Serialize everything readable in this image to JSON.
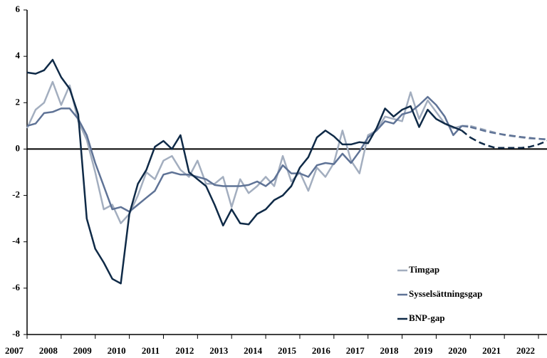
{
  "chart_data": {
    "type": "line",
    "x": [
      2007,
      2007.25,
      2007.5,
      2007.75,
      2008,
      2008.25,
      2008.5,
      2008.75,
      2009,
      2009.25,
      2009.5,
      2009.75,
      2010,
      2010.25,
      2010.5,
      2010.75,
      2011,
      2011.25,
      2011.5,
      2011.75,
      2012,
      2012.25,
      2012.5,
      2012.75,
      2013,
      2013.25,
      2013.5,
      2013.75,
      2014,
      2014.25,
      2014.5,
      2014.75,
      2015,
      2015.25,
      2015.5,
      2015.75,
      2016,
      2016.25,
      2016.5,
      2016.75,
      2017,
      2017.25,
      2017.5,
      2017.75,
      2018,
      2018.25,
      2018.5,
      2018.75,
      2019,
      2019.25,
      2019.5,
      2019.75,
      2020,
      2020.25,
      2020.5,
      2020.75,
      2021,
      2021.25,
      2021.5,
      2021.75,
      2022,
      2022.25
    ],
    "series": [
      {
        "name": "Timgap",
        "color": "#a3aebf",
        "values": [
          0.9,
          1.7,
          2.0,
          2.9,
          1.9,
          2.75,
          1.2,
          0.4,
          -1.0,
          -2.6,
          -2.4,
          -3.2,
          -2.8,
          -2.0,
          -1.0,
          -1.3,
          -0.5,
          -0.3,
          -0.9,
          -1.2,
          -0.5,
          -1.5,
          -1.5,
          -1.2,
          -2.5,
          -1.3,
          -1.9,
          -1.6,
          -1.2,
          -1.6,
          -0.3,
          -1.4,
          -1.0,
          -1.8,
          -0.8,
          -1.2,
          -0.6,
          0.8,
          -0.5,
          -1.05,
          0.6,
          0.8,
          1.4,
          1.3,
          1.2,
          2.45,
          1.3,
          2.1,
          1.6,
          1.1,
          0.9,
          1.0,
          null,
          null,
          null,
          null,
          null,
          null,
          null,
          null,
          null,
          null
        ],
        "forecast_values": [
          null,
          null,
          null,
          null,
          null,
          null,
          null,
          null,
          null,
          null,
          null,
          null,
          null,
          null,
          null,
          null,
          null,
          null,
          null,
          null,
          null,
          null,
          null,
          null,
          null,
          null,
          null,
          null,
          null,
          null,
          null,
          null,
          null,
          null,
          null,
          null,
          null,
          null,
          null,
          null,
          null,
          null,
          null,
          null,
          null,
          null,
          null,
          null,
          null,
          null,
          null,
          null,
          1.0,
          0.9,
          0.8,
          0.7,
          0.6,
          0.55,
          0.5,
          0.45,
          0.45,
          0.4
        ]
      },
      {
        "name": "Sysselsättningsgap",
        "color": "#5f7396",
        "values": [
          1.0,
          1.1,
          1.55,
          1.6,
          1.75,
          1.75,
          1.3,
          0.6,
          -0.6,
          -1.6,
          -2.6,
          -2.5,
          -2.7,
          -2.4,
          -2.1,
          -1.8,
          -1.1,
          -1.0,
          -1.1,
          -1.1,
          -1.2,
          -1.3,
          -1.55,
          -1.6,
          -1.6,
          -1.6,
          -1.55,
          -1.4,
          -1.6,
          -1.3,
          -0.7,
          -1.05,
          -1.05,
          -1.2,
          -0.7,
          -0.6,
          -0.65,
          -0.2,
          -0.6,
          -0.1,
          0.5,
          0.8,
          1.2,
          1.1,
          1.5,
          1.6,
          1.9,
          2.25,
          1.9,
          1.4,
          0.6,
          1.0,
          null,
          null,
          null,
          null,
          null,
          null,
          null,
          null,
          null,
          null
        ],
        "forecast_values": [
          null,
          null,
          null,
          null,
          null,
          null,
          null,
          null,
          null,
          null,
          null,
          null,
          null,
          null,
          null,
          null,
          null,
          null,
          null,
          null,
          null,
          null,
          null,
          null,
          null,
          null,
          null,
          null,
          null,
          null,
          null,
          null,
          null,
          null,
          null,
          null,
          null,
          null,
          null,
          null,
          null,
          null,
          null,
          null,
          null,
          null,
          null,
          null,
          null,
          null,
          null,
          null,
          0.95,
          0.85,
          0.75,
          0.68,
          0.62,
          0.57,
          0.52,
          0.48,
          0.44,
          0.42
        ]
      },
      {
        "name": "BNP-gap",
        "color": "#0f2a47",
        "values": [
          3.3,
          3.25,
          3.4,
          3.85,
          3.1,
          2.6,
          1.5,
          -3.0,
          -4.3,
          -4.9,
          -5.6,
          -5.8,
          -2.8,
          -1.5,
          -0.9,
          0.1,
          0.35,
          0.0,
          0.6,
          -1.0,
          -1.3,
          -1.6,
          -2.4,
          -3.3,
          -2.6,
          -3.2,
          -3.25,
          -2.8,
          -2.6,
          -2.2,
          -2.0,
          -1.6,
          -0.8,
          -0.35,
          0.5,
          0.8,
          0.55,
          0.2,
          0.2,
          0.3,
          0.25,
          0.9,
          1.75,
          1.4,
          1.7,
          1.85,
          0.95,
          1.7,
          1.3,
          1.1,
          0.95,
          0.8,
          null,
          null,
          null,
          null,
          null,
          null,
          null,
          null,
          null,
          null
        ],
        "forecast_values": [
          null,
          null,
          null,
          null,
          null,
          null,
          null,
          null,
          null,
          null,
          null,
          null,
          null,
          null,
          null,
          null,
          null,
          null,
          null,
          null,
          null,
          null,
          null,
          null,
          null,
          null,
          null,
          null,
          null,
          null,
          null,
          null,
          null,
          null,
          null,
          null,
          null,
          null,
          null,
          null,
          null,
          null,
          null,
          null,
          null,
          null,
          null,
          null,
          null,
          null,
          null,
          null,
          0.5,
          0.3,
          0.15,
          0.05,
          0.05,
          0.05,
          0.05,
          0.1,
          0.2,
          0.35
        ]
      }
    ],
    "xlim": [
      2007,
      2022.25
    ],
    "xticks": [
      2007,
      2008,
      2009,
      2010,
      2011,
      2012,
      2013,
      2014,
      2015,
      2016,
      2017,
      2018,
      2019,
      2020,
      2021,
      2022
    ],
    "ylim": [
      -8,
      6
    ],
    "yticks": [
      -8,
      -6,
      -4,
      -2,
      0,
      2,
      4,
      6
    ],
    "legend": "lower right"
  }
}
